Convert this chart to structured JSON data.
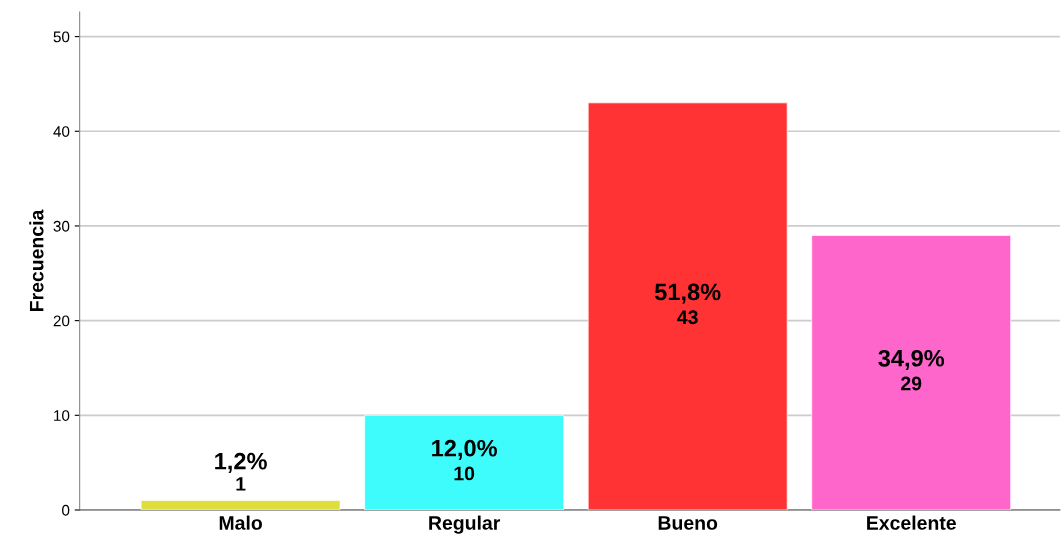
{
  "chart_data": {
    "type": "bar",
    "ylabel": "Frecuencia",
    "categories": [
      "Malo",
      "Regular",
      "Bueno",
      "Excelente"
    ],
    "values": [
      1,
      10,
      43,
      29
    ],
    "colors": [
      "#dede3c",
      "#3ffcfc",
      "#ff3333",
      "#ff66cc"
    ],
    "value_labels": [
      "1,2%\n1",
      "12,0%\n10",
      "51,8%\n43",
      "34,9%\n29"
    ],
    "ylim": [
      0,
      52.6
    ],
    "yticks": [
      0,
      10,
      20,
      30,
      40,
      50
    ],
    "grid": "y",
    "legend": false
  }
}
